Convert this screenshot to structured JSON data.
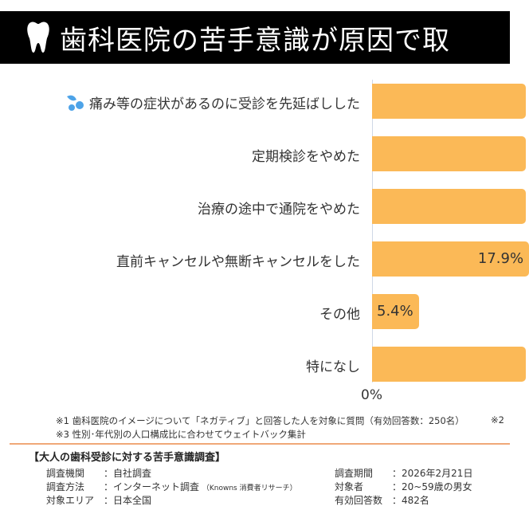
{
  "title": "歯科医院の苦手意識が原因で取",
  "chart_data": {
    "type": "bar",
    "orientation": "horizontal",
    "categories": [
      "痛み等の症状があるのに受診を先延ばしした",
      "定期検診をやめた",
      "治療の途中で通院をやめた",
      "直前キャンセルや無断キャンセルをした",
      "その他",
      "特になし"
    ],
    "values": [
      null,
      null,
      null,
      17.9,
      5.4,
      null
    ],
    "value_labels": [
      "",
      "",
      "",
      "17.9%",
      "5.4%",
      ""
    ],
    "x_tick_labels": [
      "0%"
    ],
    "xlim_min": 0,
    "bar_color": "#fbb957",
    "grid": false
  },
  "notes": {
    "n1": "※1 歯科医院のイメージについて「ネガティブ」と回答した人を対象に質問（有効回答数：250名）",
    "n2": "※2",
    "n3": "※3 性別･年代別の人口構成比に合わせてウェイトバック集計"
  },
  "footer": {
    "heading": "【大人の歯科受診に対する苦手意識調査】",
    "left": [
      {
        "k": "調査機関",
        "v": "：自社調査",
        "s": ""
      },
      {
        "k": "調査方法",
        "v": "：インターネット調査",
        "s": "（Knowns 消費者リサーチ）"
      },
      {
        "k": "対象エリア",
        "v": "：日本全国",
        "s": ""
      }
    ],
    "right": [
      {
        "k": "調査期間",
        "v": "：2026年2月21日"
      },
      {
        "k": "対象者",
        "v": "：20~59歳の男女"
      },
      {
        "k": "有効回答数",
        "v": "：482名"
      }
    ]
  },
  "icons": {
    "title": "tooth-icon",
    "first_row": "water-drops-icon"
  }
}
